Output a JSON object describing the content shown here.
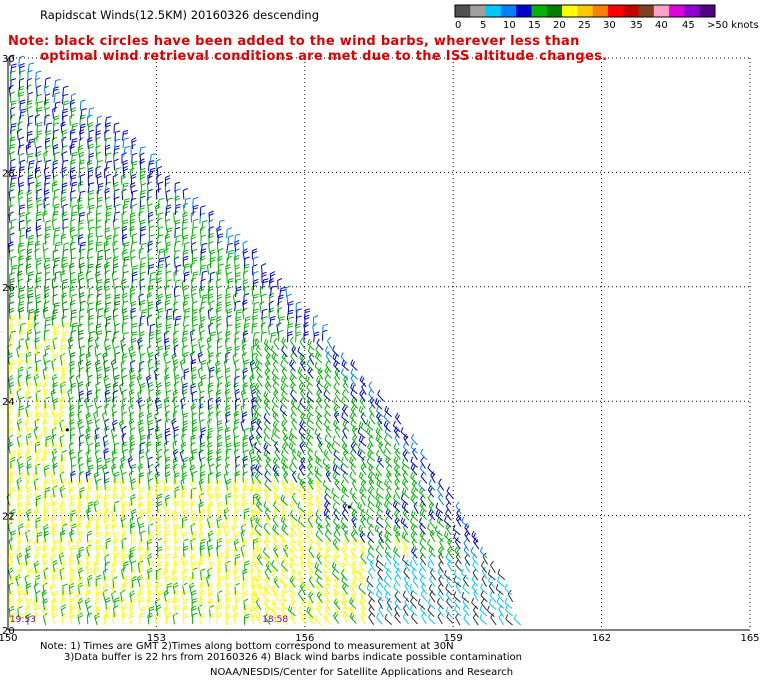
{
  "header": {
    "title": "Rapidscat Winds(12.5KM) 20160326 descending",
    "note_line1": "Note: black circles have been added to the wind barbs, wherever less than",
    "note_line2": "optimal wind retrieval conditions are met due to the ISS altitude changes."
  },
  "colorbar": {
    "colors": [
      "#505050",
      "#a0a0a0",
      "#00c8ff",
      "#0080ff",
      "#0000cc",
      "#00b400",
      "#008000",
      "#ffff00",
      "#ffc800",
      "#ff8000",
      "#ff0000",
      "#c80000",
      "#804020",
      "#ffa0c8",
      "#e000e0",
      "#9000d0",
      "#500080"
    ],
    "labels": [
      "0",
      "5",
      "10",
      "15",
      "20",
      "25",
      "30",
      "35",
      "40",
      "45",
      ">50 knots"
    ]
  },
  "chart_data": {
    "type": "scatter",
    "title": "Rapidscat Winds(12.5KM) 20160326 descending",
    "xlabel": "",
    "ylabel": "",
    "xlim": [
      150,
      165
    ],
    "ylim": [
      20,
      30
    ],
    "x_ticks": [
      "150",
      "153",
      "156",
      "159",
      "162",
      "165"
    ],
    "y_ticks": [
      "20",
      "22",
      "24",
      "26",
      "28",
      "30"
    ],
    "grid": true,
    "time_labels": [
      {
        "text": "19:53",
        "lon": 150.2,
        "lat": 20.3
      },
      {
        "text": "18:58",
        "lon": 155.3,
        "lat": 20.3
      }
    ],
    "swath_edge": [
      [
        150.0,
        30.0
      ],
      [
        150.9,
        29.5
      ],
      [
        152.0,
        28.8
      ],
      [
        153.2,
        27.9
      ],
      [
        154.6,
        26.8
      ],
      [
        155.8,
        25.7
      ],
      [
        157.0,
        24.6
      ],
      [
        158.0,
        23.6
      ],
      [
        159.0,
        22.3
      ],
      [
        159.8,
        21.2
      ],
      [
        160.3,
        20.6
      ],
      [
        160.4,
        20.0
      ]
    ],
    "speed_zones": [
      {
        "zone": "north",
        "speed_kt": "10-20",
        "color": "blue/green"
      },
      {
        "zone": "central",
        "speed_kt": "15-20",
        "color": "green"
      },
      {
        "zone": "southwest",
        "speed_kt": "20-25",
        "color": "yellow"
      },
      {
        "zone": "southeast edge",
        "speed_kt": "0-10",
        "color": "gray/cyan"
      }
    ]
  },
  "footer": {
    "line1": "Note: 1) Times are GMT 2)Times along bottom correspond to measurement at 30N",
    "line2": "3)Data buffer is 22 hrs from 20160326 4) Black wind barbs indicate possible contamination",
    "line3": "NOAA/NESDIS/Center for Satellite Applications and Research"
  }
}
